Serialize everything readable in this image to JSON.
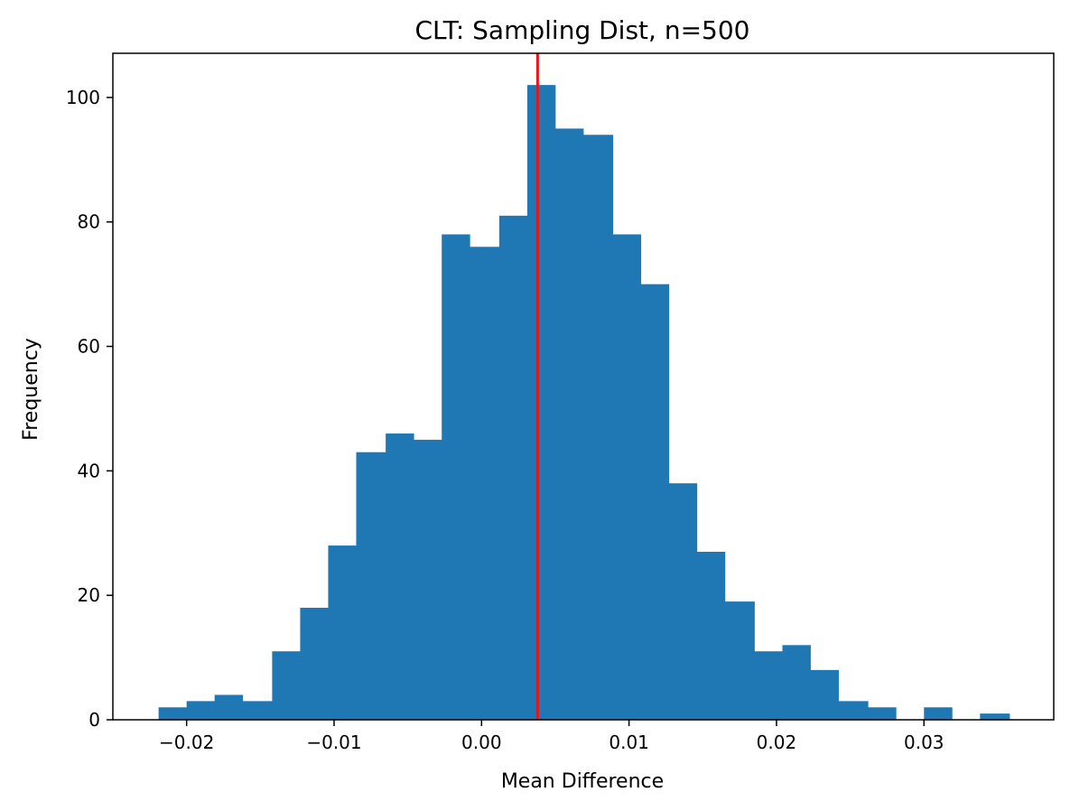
{
  "chart_data": {
    "type": "bar",
    "title": "CLT: Sampling Dist, n=500",
    "xlabel": "Mean Difference",
    "ylabel": "Frequency",
    "xlim": [
      -0.025,
      0.0388
    ],
    "ylim": [
      0,
      107.1
    ],
    "bin_edges": [
      -0.0219,
      -0.02,
      -0.0181,
      -0.0162,
      -0.0142,
      -0.0123,
      -0.0104,
      -0.0085,
      -0.0065,
      -0.0046,
      -0.0027,
      -0.0008,
      0.0012,
      0.0031,
      0.005,
      0.0069,
      0.0089,
      0.0108,
      0.0127,
      0.0146,
      0.0165,
      0.0185,
      0.0204,
      0.0223,
      0.0242,
      0.0262,
      0.0281,
      0.03,
      0.0319,
      0.0338,
      0.0358
    ],
    "values": [
      2,
      3,
      4,
      3,
      11,
      18,
      28,
      43,
      46,
      45,
      78,
      76,
      81,
      102,
      95,
      94,
      78,
      70,
      38,
      27,
      19,
      11,
      12,
      8,
      3,
      2,
      0,
      2,
      0,
      1
    ],
    "bar_color": "#1f77b4",
    "mean_line": {
      "x": 0.0038,
      "color": "#e8141b"
    },
    "x_ticks": [
      {
        "value": -0.02,
        "label": "−0.02"
      },
      {
        "value": -0.01,
        "label": "−0.01"
      },
      {
        "value": 0.0,
        "label": "0.00"
      },
      {
        "value": 0.01,
        "label": "0.01"
      },
      {
        "value": 0.02,
        "label": "0.02"
      },
      {
        "value": 0.03,
        "label": "0.03"
      }
    ],
    "y_ticks": [
      {
        "value": 0,
        "label": "0"
      },
      {
        "value": 20,
        "label": "20"
      },
      {
        "value": 40,
        "label": "40"
      },
      {
        "value": 60,
        "label": "60"
      },
      {
        "value": 80,
        "label": "80"
      },
      {
        "value": 100,
        "label": "100"
      }
    ],
    "grid": false,
    "legend": "none"
  }
}
